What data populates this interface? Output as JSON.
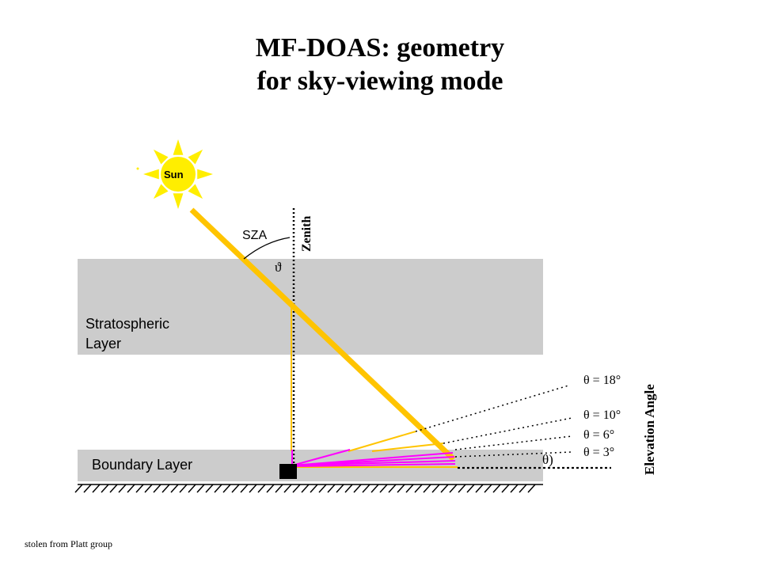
{
  "title": {
    "line1": "MF-DOAS: geometry",
    "line2": "for sky-viewing mode"
  },
  "diagram": {
    "sun_label": "Sun",
    "sza_label": "SZA",
    "sza_symbol": "ϑ",
    "zenith_label": "Zenith",
    "strat_label_line1": "Stratospheric",
    "strat_label_line2": "Layer",
    "boundary_label": "Boundary Layer",
    "elevation_label": "Elevation Angle",
    "theta_symbol": "θ)",
    "angles": [
      {
        "label": "θ = 18°",
        "value": 18
      },
      {
        "label": "θ = 10°",
        "value": 10
      },
      {
        "label": "θ = 6°",
        "value": 6
      },
      {
        "label": "θ = 3°",
        "value": 3
      }
    ],
    "colors": {
      "layer_gray": "#cccccc",
      "sun_yellow": "#ffee00",
      "sun_ray": "#ffc400",
      "scatter_magenta": "#ff00ff",
      "ground": "#000000"
    }
  },
  "credit": "stolen from Platt group"
}
